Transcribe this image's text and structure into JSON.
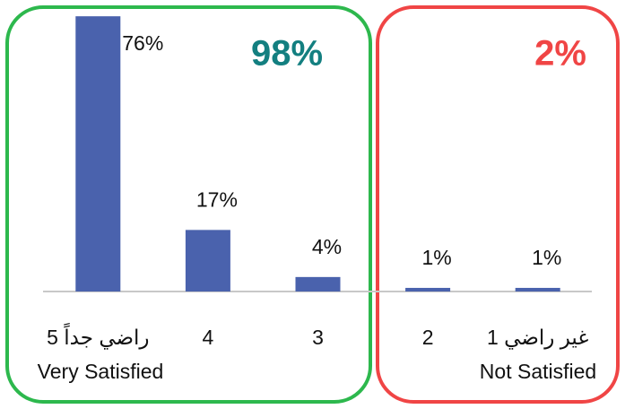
{
  "chart_data": {
    "type": "bar",
    "categories": [
      "5 راضي جداً",
      "4",
      "3",
      "2",
      "1 غير راضي"
    ],
    "values": [
      76,
      17,
      4,
      1,
      1
    ],
    "value_labels": [
      "76%",
      "17%",
      "4%",
      "1%",
      "1%"
    ],
    "color": "#4a62ad",
    "ylim": [
      0,
      80
    ],
    "sub_labels": [
      "Very Satisfied",
      "Not Satisfied"
    ],
    "group_labels": [
      {
        "text": "98%",
        "color": "#137f80",
        "border": "#2db84d"
      },
      {
        "text": "2%",
        "color": "#f04545",
        "border": "#f04545"
      }
    ]
  }
}
